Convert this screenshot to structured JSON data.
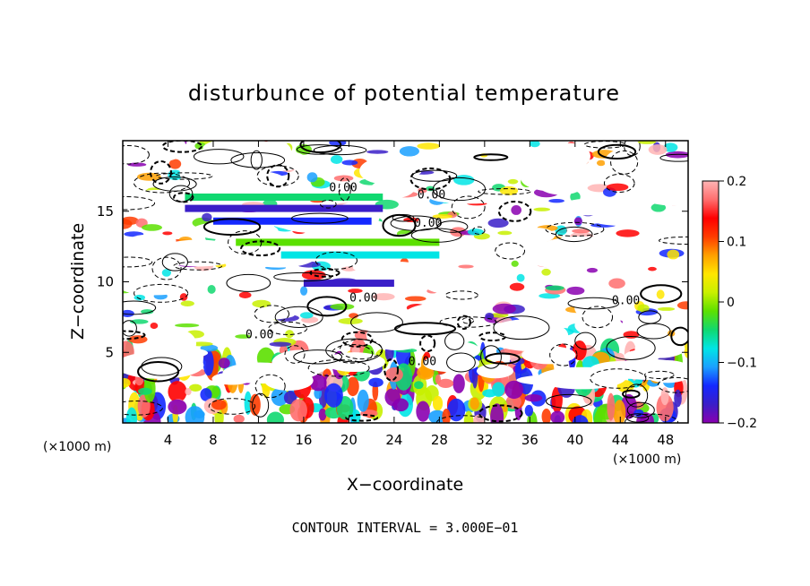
{
  "chart_data": {
    "type": "heatmap",
    "title": "disturbunce of potential temperature",
    "xlabel": "X−coordinate",
    "ylabel": "Z−coordinate",
    "x_unit_left": "(×1000 m)",
    "x_unit_right": "(×1000 m)",
    "xlim": [
      0,
      50
    ],
    "ylim": [
      0,
      20
    ],
    "x_ticks": [
      4,
      8,
      12,
      16,
      20,
      24,
      28,
      32,
      36,
      40,
      44,
      48
    ],
    "y_ticks": [
      5,
      10,
      15
    ],
    "colorbar": {
      "min": -0.2,
      "max": 0.2,
      "ticks": [
        0.2,
        0.1,
        0,
        -0.1,
        -0.2
      ],
      "tick_labels": [
        "0.2",
        "0.1",
        "0",
        "−0.1",
        "−0.2"
      ]
    },
    "contour_labels": [
      {
        "text": "0.00",
        "x": 19.5,
        "y": 16.4
      },
      {
        "text": "0.00",
        "x": 27.3,
        "y": 15.9
      },
      {
        "text": "0.00",
        "x": 27.0,
        "y": 13.9
      },
      {
        "text": "0.00",
        "x": 21.3,
        "y": 8.6
      },
      {
        "text": "0.00",
        "x": 12.1,
        "y": 6.0
      },
      {
        "text": "0.00",
        "x": 26.5,
        "y": 4.1
      },
      {
        "text": "0.00",
        "x": 44.5,
        "y": 8.4
      }
    ],
    "footer": "CONTOUR INTERVAL = 3.000E−01"
  },
  "colors": {
    "scale": [
      "#8a00b0",
      "#3a1ec8",
      "#1428ff",
      "#1aa0ff",
      "#00e5e5",
      "#10d870",
      "#5ce000",
      "#c8f000",
      "#ffe600",
      "#ffa000",
      "#ff3c00",
      "#ff0000",
      "#ff6e6e",
      "#ffb4b4"
    ],
    "frame": "#000000"
  }
}
